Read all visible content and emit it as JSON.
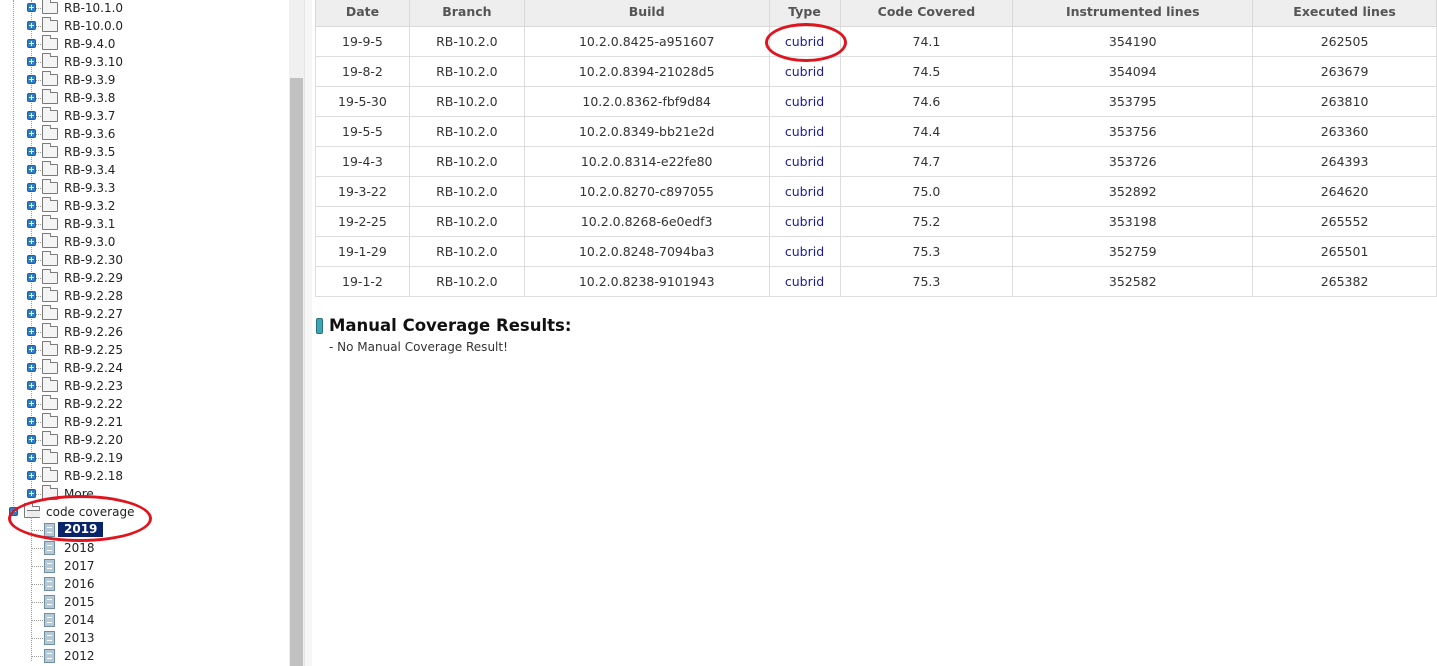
{
  "tree": {
    "branches": [
      "RB-10.1.0",
      "RB-10.0.0",
      "RB-9.4.0",
      "RB-9.3.10",
      "RB-9.3.9",
      "RB-9.3.8",
      "RB-9.3.7",
      "RB-9.3.6",
      "RB-9.3.5",
      "RB-9.3.4",
      "RB-9.3.3",
      "RB-9.3.2",
      "RB-9.3.1",
      "RB-9.3.0",
      "RB-9.2.30",
      "RB-9.2.29",
      "RB-9.2.28",
      "RB-9.2.27",
      "RB-9.2.26",
      "RB-9.2.25",
      "RB-9.2.24",
      "RB-9.2.23",
      "RB-9.2.22",
      "RB-9.2.21",
      "RB-9.2.20",
      "RB-9.2.19",
      "RB-9.2.18",
      "More"
    ],
    "code_coverage": {
      "label": "code coverage",
      "years": [
        "2019",
        "2018",
        "2017",
        "2016",
        "2015",
        "2014",
        "2013",
        "2012"
      ],
      "selected": "2019"
    }
  },
  "results_table": {
    "headers": [
      "Date",
      "Branch",
      "Build",
      "Type",
      "Code Covered",
      "Instrumented lines",
      "Executed lines"
    ],
    "rows": [
      [
        "19-9-5",
        "RB-10.2.0",
        "10.2.0.8425-a951607",
        "cubrid",
        "74.1",
        "354190",
        "262505"
      ],
      [
        "19-8-2",
        "RB-10.2.0",
        "10.2.0.8394-21028d5",
        "cubrid",
        "74.5",
        "354094",
        "263679"
      ],
      [
        "19-5-30",
        "RB-10.2.0",
        "10.2.0.8362-fbf9d84",
        "cubrid",
        "74.6",
        "353795",
        "263810"
      ],
      [
        "19-5-5",
        "RB-10.2.0",
        "10.2.0.8349-bb21e2d",
        "cubrid",
        "74.4",
        "353756",
        "263360"
      ],
      [
        "19-4-3",
        "RB-10.2.0",
        "10.2.0.8314-e22fe80",
        "cubrid",
        "74.7",
        "353726",
        "264393"
      ],
      [
        "19-3-22",
        "RB-10.2.0",
        "10.2.0.8270-c897055",
        "cubrid",
        "75.0",
        "352892",
        "264620"
      ],
      [
        "19-2-25",
        "RB-10.2.0",
        "10.2.0.8268-6e0edf3",
        "cubrid",
        "75.2",
        "353198",
        "265552"
      ],
      [
        "19-1-29",
        "RB-10.2.0",
        "10.2.0.8248-7094ba3",
        "cubrid",
        "75.3",
        "352759",
        "265501"
      ],
      [
        "19-1-2",
        "RB-10.2.0",
        "10.2.0.8238-9101943",
        "cubrid",
        "75.3",
        "352582",
        "265382"
      ]
    ]
  },
  "manual": {
    "title": "Manual Coverage Results:",
    "message": "- No Manual Coverage Result!"
  },
  "colors": {
    "annotation": "#e0141e",
    "link": "#1a1aa6",
    "selected_bg": "#0a246a"
  }
}
